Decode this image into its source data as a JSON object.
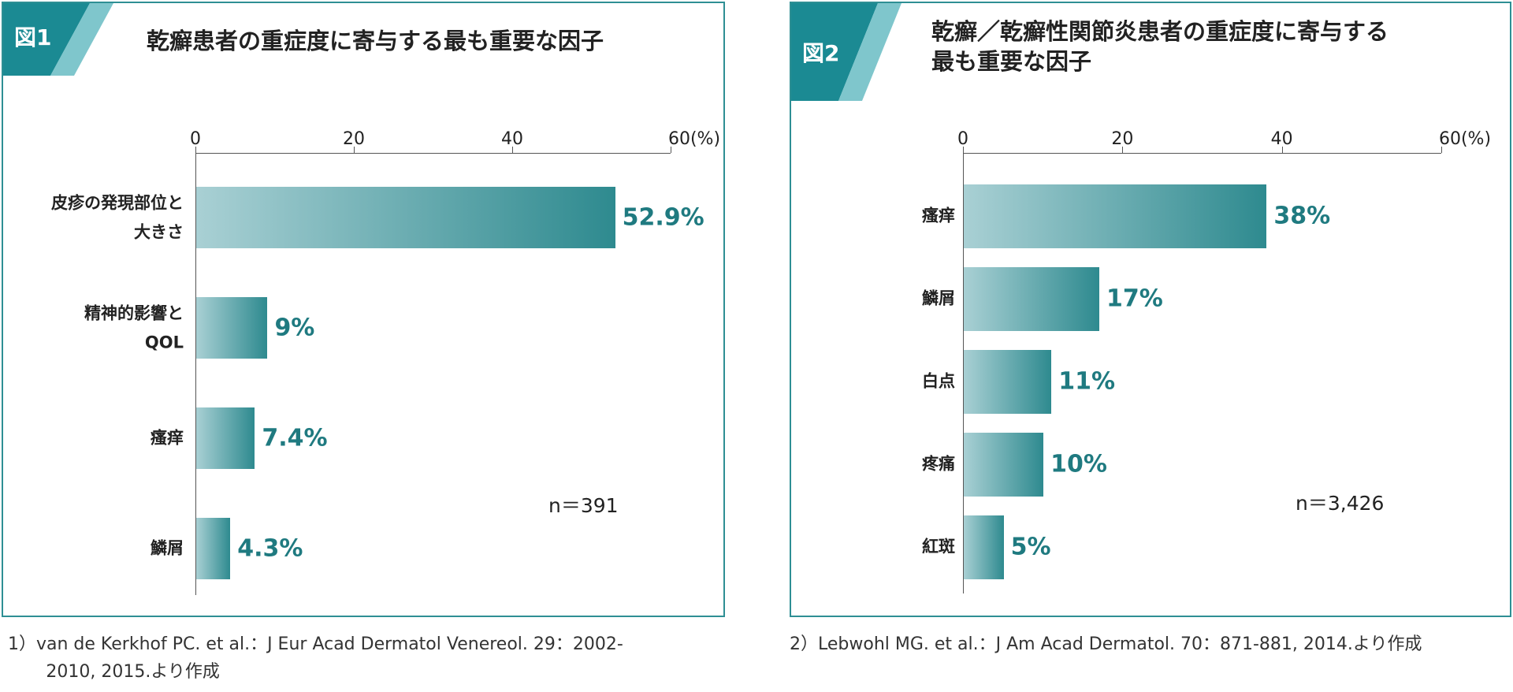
{
  "chart_data": [
    {
      "type": "bar",
      "orientation": "horizontal",
      "figure_label": "図1",
      "title": "乾癬患者の重症度に寄与する最も重要な因子",
      "categories": [
        "皮疹の発現部位と\n大きさ",
        "精神的影響と\nQOL",
        "瘙痒",
        "鱗屑"
      ],
      "values": [
        52.9,
        9,
        7.4,
        4.3
      ],
      "value_labels": [
        "52.9%",
        "9%",
        "7.4%",
        "4.3%"
      ],
      "xlim": [
        0,
        60
      ],
      "xticks": [
        0,
        20,
        40,
        {
          "value": 60,
          "label": "60(%)"
        }
      ],
      "note": "n＝391",
      "color": "#2e8a8f",
      "source": "1）van de Kerkhof PC. et al.：J Eur Acad Dermatol Venereol. 29：2002-\n2010, 2015.より作成"
    },
    {
      "type": "bar",
      "orientation": "horizontal",
      "figure_label": "図2",
      "title": "乾癬／乾癬性関節炎患者の重症度に寄与する\n最も重要な因子",
      "categories": [
        "瘙痒",
        "鱗屑",
        "白点",
        "疼痛",
        "紅斑"
      ],
      "values": [
        38,
        17,
        11,
        10,
        5
      ],
      "value_labels": [
        "38%",
        "17%",
        "11%",
        "10%",
        "5%"
      ],
      "xlim": [
        0,
        60
      ],
      "xticks": [
        0,
        20,
        40,
        {
          "value": 60,
          "label": "60(%)"
        }
      ],
      "note": "n＝3,426",
      "color": "#2e8a8f",
      "source": "2）Lebwohl MG. et al.：J Am Acad Dermatol. 70：871-881, 2014.より作成"
    }
  ]
}
